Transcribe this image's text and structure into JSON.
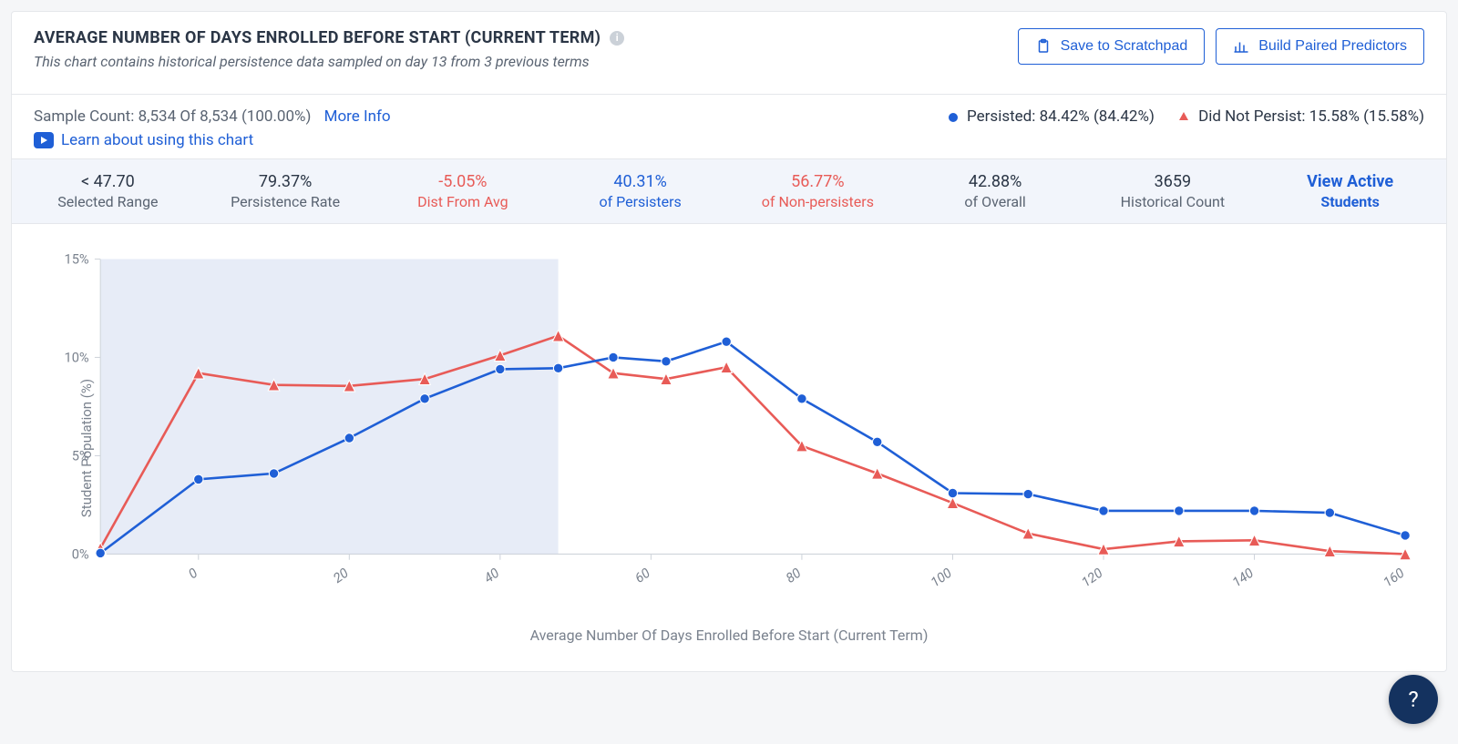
{
  "header": {
    "title": "AVERAGE NUMBER OF DAYS ENROLLED BEFORE START (CURRENT TERM)",
    "subtitle": "This chart contains historical persistence data sampled on day 13 from 3 previous terms",
    "save_btn": "Save to Scratchpad",
    "predictors_btn": "Build Paired Predictors"
  },
  "meta": {
    "sample_count": "Sample Count: 8,534 Of 8,534 (100.00%)",
    "more_info": "More Info",
    "learn_link": "Learn about using this chart"
  },
  "legend": {
    "persisted": {
      "label": "Persisted: 84.42% (84.42%)",
      "color": "#1f5fd6",
      "marker": "circle"
    },
    "did_not_persist": {
      "label": "Did Not Persist: 15.58% (15.58%)",
      "color": "#e85b57",
      "marker": "triangle"
    }
  },
  "stats": {
    "selected_range": {
      "value": "< 47.70",
      "label": "Selected Range"
    },
    "persistence_rate": {
      "value": "79.37%",
      "label": "Persistence Rate"
    },
    "dist_from_avg": {
      "value": "-5.05%",
      "label": "Dist From Avg"
    },
    "of_persisters": {
      "value": "40.31%",
      "label": "of Persisters"
    },
    "of_non_persisters": {
      "value": "56.77%",
      "label": "of Non-persisters"
    },
    "of_overall": {
      "value": "42.88%",
      "label": "of Overall"
    },
    "historical_count": {
      "value": "3659",
      "label": "Historical Count"
    },
    "view_active": {
      "value": "View Active",
      "label": "Students"
    }
  },
  "chart": {
    "type": "line",
    "xlabel": "Average Number Of Days Enrolled Before Start (Current Term)",
    "ylabel": "Student Population (%)",
    "background_color": "#ffffff",
    "selection_fill": "#e7ecf7",
    "selection_range": [
      -13,
      47.7
    ],
    "axis_color": "#cfd4db",
    "tick_color": "#7a828e",
    "x": {
      "min": -13,
      "max": 160,
      "ticks": [
        0,
        20,
        40,
        60,
        80,
        100,
        120,
        140,
        160
      ],
      "label_fontsize": 14,
      "tick_rotation": -35
    },
    "y": {
      "min": 0,
      "max": 15,
      "ticks": [
        0,
        5,
        10,
        15
      ],
      "tick_suffix": "%",
      "label_fontsize": 14
    },
    "line_width": 2.5,
    "marker_size": 5,
    "series": {
      "persisted": {
        "color": "#1f5fd6",
        "marker": "circle",
        "x": [
          -13,
          0,
          10,
          20,
          30,
          40,
          47.7,
          55,
          62,
          70,
          80,
          90,
          100,
          110,
          120,
          130,
          140,
          150,
          160
        ],
        "y": [
          0.05,
          3.8,
          4.1,
          5.9,
          7.9,
          9.4,
          9.45,
          10.0,
          9.8,
          10.8,
          7.9,
          5.7,
          3.1,
          3.05,
          2.2,
          2.2,
          2.2,
          2.1,
          0.95
        ]
      },
      "did_not_persist": {
        "color": "#e85b57",
        "marker": "triangle",
        "x": [
          -13,
          0,
          10,
          20,
          30,
          40,
          47.7,
          55,
          62,
          70,
          80,
          90,
          100,
          110,
          120,
          130,
          140,
          150,
          160
        ],
        "y": [
          0.3,
          9.2,
          8.6,
          8.55,
          8.9,
          10.1,
          11.1,
          9.2,
          8.9,
          9.5,
          5.5,
          4.1,
          2.6,
          1.05,
          0.25,
          0.65,
          0.7,
          0.15,
          0.0
        ]
      }
    }
  },
  "colors": {
    "blue": "#1f5fd6",
    "red": "#e85b57",
    "grey": "#5a6472",
    "fab": "#14325f"
  }
}
